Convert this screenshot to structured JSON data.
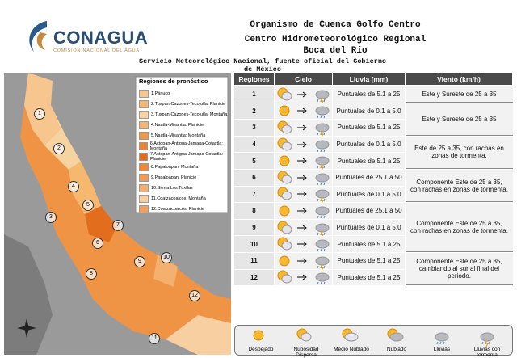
{
  "header": {
    "logo": "CONAGUA",
    "logo_sub": "COMISIÓN NACIONAL DEL AGUA",
    "line1": "Organismo de Cuenca Golfo Centro",
    "line2": "Centro Hidrometeorológico Regional",
    "line3": "Boca del Río",
    "line4": "Servicio Meteorológico Nacional, fuente oficial del Gobierno de México"
  },
  "map": {
    "legend_title": "Regiones de pronóstico",
    "legend": [
      {
        "label": "1.Pánuco",
        "color": "#f6c68e"
      },
      {
        "label": "2.Tuxpan-Cazones-Tecolutla: Planicie",
        "color": "#f4b96f"
      },
      {
        "label": "3.Tuxpan-Cazones-Tecolutla: Montaña",
        "color": "#f7d3a2"
      },
      {
        "label": "4.Nautla-Misantla: Planicie",
        "color": "#f5b575"
      },
      {
        "label": "5.Nautla-Misantla: Montaña",
        "color": "#ee9a4a"
      },
      {
        "label": "6.Actopan-Antigua-Jamapa-Cotaxtla: Montaña",
        "color": "#ea8433"
      },
      {
        "label": "7.Actopan-Antigua-Jamapa-Cotaxtla: Planicie",
        "color": "#e26d1c"
      },
      {
        "label": "8.Papaloapan: Montaña",
        "color": "#f08a3a"
      },
      {
        "label": "9.Papaloapan: Planicie",
        "color": "#ef9f55"
      },
      {
        "label": "10.Sierra Los Tuxtlas",
        "color": "#f4b06e"
      },
      {
        "label": "11.Coatzacoalcos: Montaña",
        "color": "#f8cfa0"
      },
      {
        "label": "12.Coatzacoalcos: Planicie",
        "color": "#f3a15a"
      }
    ],
    "region_numbers": [
      "1",
      "2",
      "3",
      "4",
      "5",
      "6",
      "7",
      "8",
      "9",
      "10",
      "11",
      "12"
    ]
  },
  "table": {
    "headers": [
      "Regiones",
      "Cielo",
      "Lluvia (mm)",
      "Viento (km/h)"
    ],
    "rows": [
      [
        "1",
        "Puntuales de 5.1 a 25"
      ],
      [
        "2",
        "Puntuales de 0.1 a 5.0"
      ],
      [
        "3",
        "Puntuales de 5.1 a 25"
      ],
      [
        "4",
        "Puntuales de 0.1 a 5.0"
      ],
      [
        "5",
        "Puntuales de 5.1 a 25"
      ],
      [
        "6",
        "Puntuales de 25.1 a 50"
      ],
      [
        "7",
        "Puntuales de 0.1 a 5.0"
      ],
      [
        "8",
        "Puntuales de 25.1 a 50"
      ],
      [
        "9",
        "Puntuales de 0.1 a 5.0"
      ],
      [
        "10",
        "Puntuales de 5.1 a 25"
      ],
      [
        "11",
        "Puntuales de 5.1 a 25"
      ],
      [
        "12",
        "Puntuales de 5.1 a 25"
      ]
    ],
    "wind": [
      "Este y Sureste de 25 a 35",
      "Este y Sureste de 25 a 35",
      "Este  de 25 a 35, con rachas en zonas de tormenta.",
      "Componente Este de 25 a 35, con rachas en zonas de tormenta.",
      "Componente Este de 25 a 35, con rachas en zonas de tormenta.",
      "Componente Este de 25 a 35, cambiando al sur al final del periodo."
    ]
  },
  "sky_legend": [
    "Despejado",
    "Nubosidad Dispersa",
    "Medio Nublado",
    "Nublado",
    "Lluvias",
    "Lluvias con tormenta"
  ]
}
